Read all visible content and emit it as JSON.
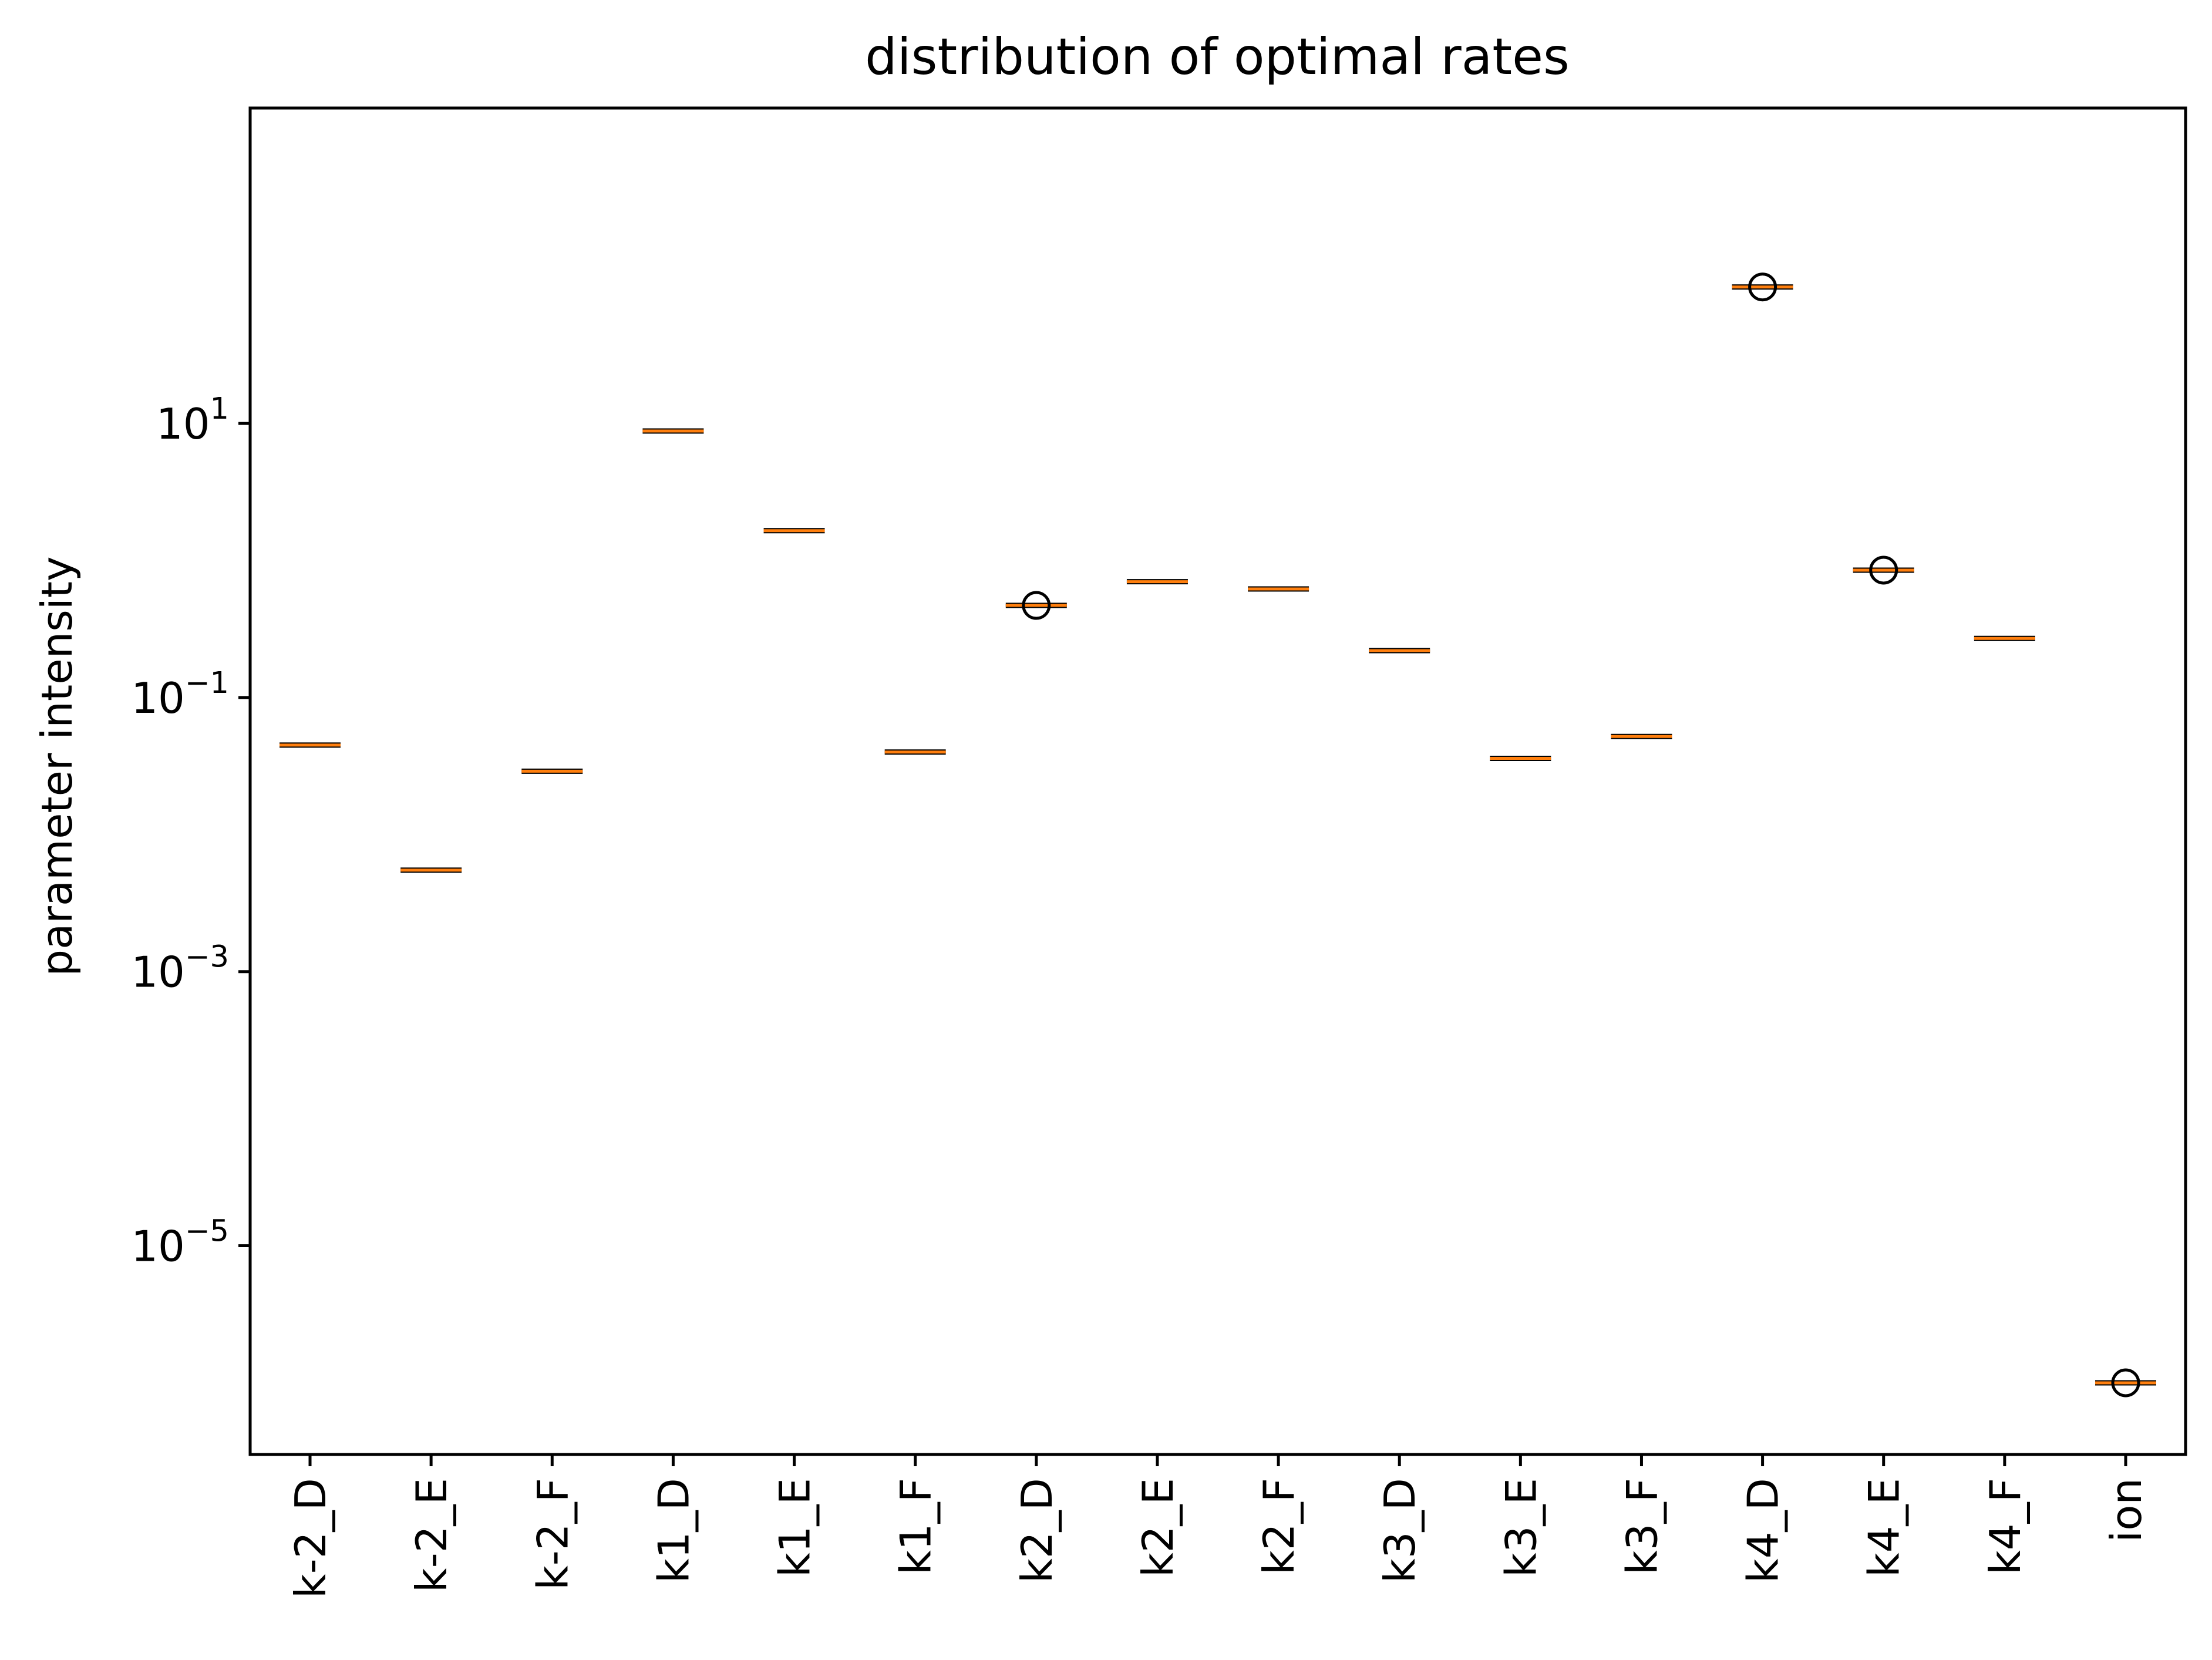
{
  "chart_data": {
    "type": "box",
    "title": "distribution of optimal rates",
    "xlabel": "",
    "ylabel": "parameter intensity",
    "y_scale": "log",
    "ylim": [
      3e-07,
      2000
    ],
    "y_ticks": [
      {
        "value": 10,
        "base": "10",
        "exp": "1"
      },
      {
        "value": 0.1,
        "base": "10",
        "exp": "−1"
      },
      {
        "value": 0.001,
        "base": "10",
        "exp": "−3"
      },
      {
        "value": 1e-05,
        "base": "10",
        "exp": "−5"
      }
    ],
    "categories": [
      "k-2_D",
      "k-2_E",
      "k-2_F",
      "k1_D",
      "k1_E",
      "k1_F",
      "k2_D",
      "k2_E",
      "k2_F",
      "k3_D",
      "k3_E",
      "k3_F",
      "k4_D",
      "k4_E",
      "k4_F",
      "ion"
    ],
    "medians": [
      0.045,
      0.0055,
      0.029,
      8.8,
      1.65,
      0.04,
      0.47,
      0.7,
      0.62,
      0.22,
      0.036,
      0.052,
      99,
      0.85,
      0.27,
      1e-06
    ],
    "outliers": [
      {
        "category": "k2_D",
        "value": 0.47
      },
      {
        "category": "k4_D",
        "value": 99
      },
      {
        "category": "k4_E",
        "value": 0.85
      },
      {
        "category": "ion",
        "value": 1e-06
      }
    ],
    "grid": false,
    "colors": {
      "median": "#ff7f0e",
      "box": "#000000",
      "outlier": "#000000",
      "axes": "#000000"
    }
  }
}
